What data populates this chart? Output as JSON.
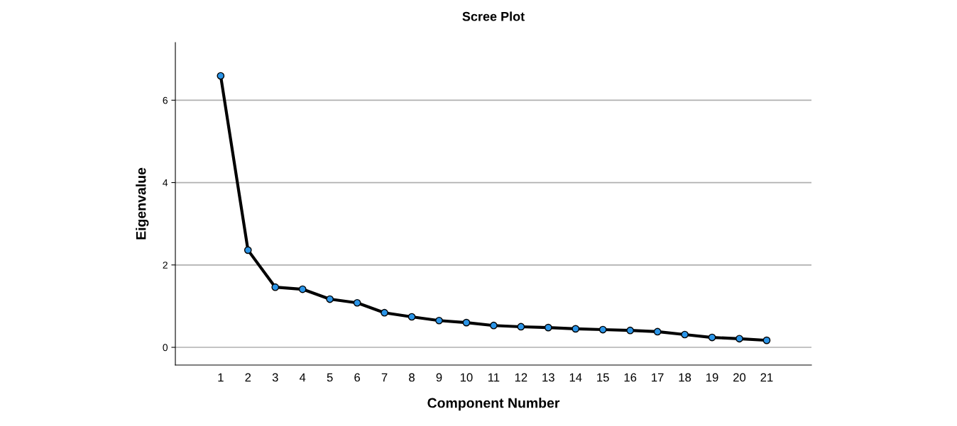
{
  "chart_data": {
    "type": "line",
    "title": "Scree Plot",
    "xlabel": "Component Number",
    "ylabel": "Eigenvalue",
    "categories": [
      "1",
      "2",
      "3",
      "4",
      "5",
      "6",
      "7",
      "8",
      "9",
      "10",
      "11",
      "12",
      "13",
      "14",
      "15",
      "16",
      "17",
      "18",
      "19",
      "20",
      "21"
    ],
    "series": [
      {
        "color": "#000000",
        "colors": [
          "#2b95e8",
          "#2b95e8",
          "#2b95e8",
          "#2b95e8",
          "#2b95e8",
          "#2b95e8",
          "#2b95e8",
          "#2b95e8",
          "#2b95e8",
          "#2b95e8",
          "#2b95e8",
          "#2b95e8",
          "#2b95e8",
          "#2b95e8",
          "#2b95e8",
          "#2b95e8",
          "#2b95e8",
          "#2b95e8",
          "#2b95e8",
          "#2b95e8",
          "#2b95e8"
        ],
        "values": [
          6.59,
          2.36,
          1.46,
          1.41,
          1.17,
          1.08,
          0.84,
          0.74,
          0.65,
          0.6,
          0.53,
          0.5,
          0.48,
          0.45,
          0.43,
          0.41,
          0.38,
          0.31,
          0.24,
          0.21,
          0.17
        ]
      }
    ],
    "ylim": [
      -0.43,
      7.4
    ],
    "yticks": [
      0,
      2,
      4,
      6
    ],
    "grid": "y",
    "marker": "circle",
    "line_style": "solid",
    "legend": false
  }
}
